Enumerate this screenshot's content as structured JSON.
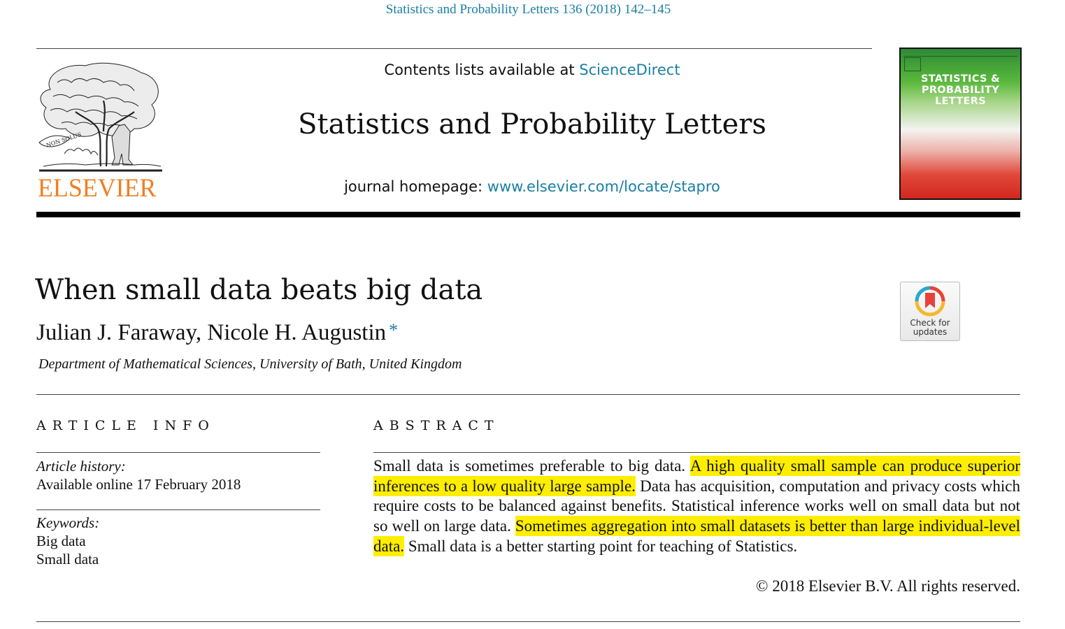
{
  "citation": "Statistics and Probability Letters 136 (2018) 142–145",
  "header": {
    "contents_prefix": "Contents lists available at ",
    "contents_link": "ScienceDirect",
    "journal_title": "Statistics and Probability Letters",
    "homepage_prefix": "journal homepage: ",
    "homepage_link": "www.elsevier.com/locate/stapro",
    "publisher_logo_text": "ELSEVIER",
    "publisher_logo_motto": "NON SOLUS",
    "cover_title": [
      "STATISTICS &",
      "PROBABILITY",
      "LETTERS"
    ]
  },
  "article": {
    "title": "When small data beats big data",
    "authors": "Julian J. Faraway, Nicole H. Augustin",
    "corresponding_mark": "*",
    "affiliation": "Department of Mathematical Sciences, University of Bath, United Kingdom",
    "check_updates": [
      "Check for",
      "updates"
    ]
  },
  "article_info": {
    "heading": "ARTICLE INFO",
    "history_label": "Article history:",
    "history_value": "Available online 17 February 2018",
    "keywords_label": "Keywords:",
    "keywords": [
      "Big data",
      "Small data"
    ]
  },
  "abstract": {
    "heading": "ABSTRACT",
    "segments": [
      {
        "text": "Small data is sometimes preferable to big data. ",
        "highlight": false
      },
      {
        "text": "A high quality small sample can produce superior inferences to a low quality large sample.",
        "highlight": true
      },
      {
        "text": " Data has acquisition, computation and privacy costs which require costs to be balanced against benefits. Statistical inference works well on small data but not so well on large data. ",
        "highlight": false
      },
      {
        "text": "Sometimes aggregation into small datasets is better than large individual-level data.",
        "highlight": true
      },
      {
        "text": " Small data is a better starting point for teaching of Statistics.",
        "highlight": false
      }
    ],
    "highlight_color": "#ffee00",
    "copyright": "© 2018 Elsevier B.V. All rights reserved."
  },
  "colors": {
    "link": "#1a7fa3",
    "elsevier_orange": "#f07f22"
  }
}
